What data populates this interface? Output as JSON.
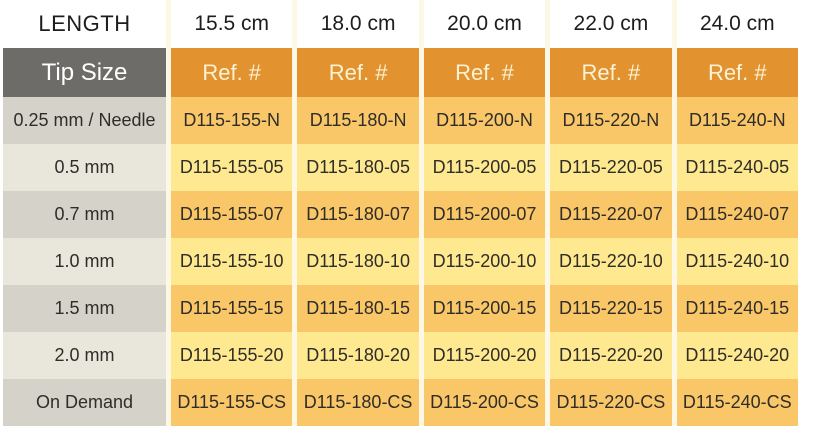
{
  "header": {
    "length_label": "LENGTH",
    "lengths": [
      "15.5 cm",
      "18.0 cm",
      "20.0 cm",
      "22.0 cm",
      "24.0 cm"
    ]
  },
  "table": {
    "tip_size_header": "Tip Size",
    "ref_header": "Ref. #",
    "rows": [
      {
        "tip_size": "0.25 mm / Needle",
        "refs": [
          "D115-155-N",
          "D115-180-N",
          "D115-200-N",
          "D115-220-N",
          "D115-240-N"
        ]
      },
      {
        "tip_size": "0.5 mm",
        "refs": [
          "D115-155-05",
          "D115-180-05",
          "D115-200-05",
          "D115-220-05",
          "D115-240-05"
        ]
      },
      {
        "tip_size": "0.7 mm",
        "refs": [
          "D115-155-07",
          "D115-180-07",
          "D115-200-07",
          "D115-220-07",
          "D115-240-07"
        ]
      },
      {
        "tip_size": "1.0 mm",
        "refs": [
          "D115-155-10",
          "D115-180-10",
          "D115-200-10",
          "D115-220-10",
          "D115-240-10"
        ]
      },
      {
        "tip_size": "1.5 mm",
        "refs": [
          "D115-155-15",
          "D115-180-15",
          "D115-200-15",
          "D115-220-15",
          "D115-240-15"
        ]
      },
      {
        "tip_size": "2.0 mm",
        "refs": [
          "D115-155-20",
          "D115-180-20",
          "D115-200-20",
          "D115-220-20",
          "D115-240-20"
        ]
      },
      {
        "tip_size": "On Demand",
        "refs": [
          "D115-155-CS",
          "D115-180-CS",
          "D115-200-CS",
          "D115-220-CS",
          "D115-240-CS"
        ]
      }
    ]
  },
  "colors": {
    "header_text": "#1d1d1d",
    "tip_size_header_bg": "#6d6c68",
    "tip_size_header_text": "#ffffff",
    "ref_header_bg": "#e2922f",
    "ref_header_text": "#f9f2d5",
    "label_row_dark_bg": "#d5d2c9",
    "label_row_light_bg": "#e9e6dc",
    "data_row_dark_bg": "#fac768",
    "data_row_light_bg": "#ffe990",
    "cell_text": "#2f2d28",
    "separator": "#fdf8e6"
  }
}
